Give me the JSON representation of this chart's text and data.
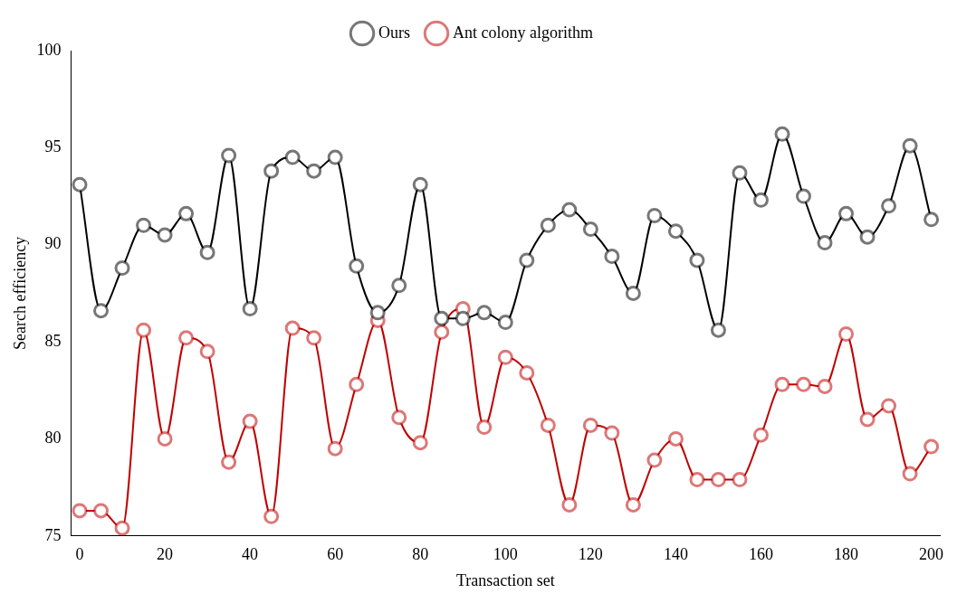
{
  "chart_data": {
    "type": "line",
    "xlabel": "Transaction set",
    "ylabel": "Search efficiency",
    "x": [
      0,
      5,
      10,
      15,
      20,
      25,
      30,
      35,
      40,
      45,
      50,
      55,
      60,
      65,
      70,
      75,
      80,
      85,
      90,
      95,
      100,
      105,
      110,
      115,
      120,
      125,
      130,
      135,
      140,
      145,
      150,
      155,
      160,
      165,
      170,
      175,
      180,
      185,
      190,
      195,
      200
    ],
    "series": [
      {
        "name": "Ours",
        "color": "#000000",
        "values": [
          93.1,
          86.6,
          88.8,
          91.0,
          90.5,
          91.6,
          89.6,
          94.6,
          86.7,
          93.8,
          94.5,
          93.8,
          94.5,
          88.9,
          86.5,
          87.9,
          93.1,
          86.2,
          86.2,
          86.5,
          86.0,
          89.2,
          91.0,
          91.8,
          90.8,
          89.4,
          87.5,
          91.5,
          90.7,
          89.2,
          85.6,
          93.7,
          92.3,
          95.7,
          92.5,
          90.1,
          91.6,
          90.4,
          92.0,
          95.1,
          91.3
        ]
      },
      {
        "name": "Ant colony algorithm",
        "color": "#c00000",
        "values": [
          76.3,
          76.3,
          75.4,
          85.6,
          80.0,
          85.2,
          84.5,
          78.8,
          80.9,
          76.0,
          85.7,
          85.2,
          79.5,
          82.8,
          86.1,
          81.1,
          79.8,
          85.5,
          86.7,
          80.6,
          84.2,
          83.4,
          80.7,
          76.6,
          80.7,
          80.3,
          76.6,
          78.9,
          80.0,
          77.9,
          77.9,
          77.9,
          80.2,
          82.8,
          82.8,
          82.7,
          85.4,
          81.0,
          81.7,
          78.2,
          79.6
        ]
      }
    ],
    "xlim": [
      -2,
      202
    ],
    "xticks": [
      0,
      20,
      40,
      60,
      80,
      100,
      120,
      140,
      160,
      180,
      200
    ],
    "ylim": [
      75,
      100
    ],
    "yticks": [
      75,
      80,
      85,
      90,
      95,
      100
    ],
    "grid": false,
    "legend": "top",
    "marker": "circle",
    "line_style": "solid"
  }
}
